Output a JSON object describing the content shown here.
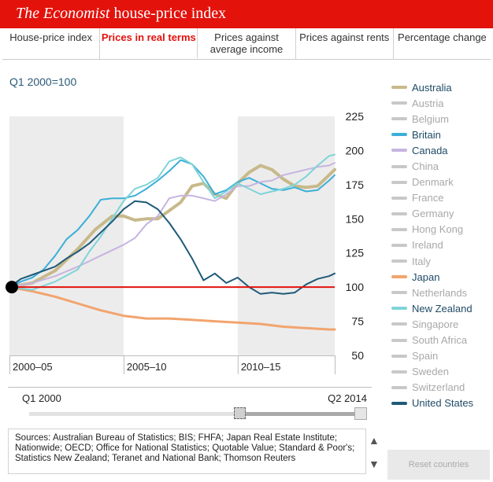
{
  "header": {
    "title_italic": "The Economist",
    "title_rest": " house-price index",
    "bar_color": "#e3120b"
  },
  "tabs": [
    {
      "label": "House-price index",
      "active": false
    },
    {
      "label": "Prices in real terms",
      "active": true
    },
    {
      "label": "Prices against average income",
      "active": false
    },
    {
      "label": "Prices against rents",
      "active": false
    },
    {
      "label": "Percentage change",
      "active": false
    }
  ],
  "base_label": "Q1 2000=100",
  "chart_data": {
    "type": "line",
    "x_range": [
      2000.0,
      2014.25
    ],
    "ylim": [
      50,
      225
    ],
    "y_ticks": [
      50,
      75,
      100,
      125,
      150,
      175,
      200,
      225
    ],
    "x_period_labels": [
      "2000–05",
      "2005–10",
      "2010–15"
    ],
    "baseline": 100,
    "baseline_color": "#e3120b",
    "start_marker": {
      "x": 2000.0,
      "y": 100
    },
    "series": [
      {
        "name": "Australia",
        "color": "#c8b98a",
        "width": 4,
        "x": [
          2000,
          2001,
          2002,
          2003,
          2003.75,
          2004.5,
          2005,
          2005.5,
          2006,
          2006.5,
          2007,
          2007.5,
          2008,
          2008.5,
          2009,
          2009.5,
          2010,
          2010.5,
          2011,
          2011.5,
          2012,
          2012.5,
          2013,
          2013.5,
          2014,
          2014.25
        ],
        "y": [
          100,
          103,
          112,
          128,
          142,
          152,
          152,
          149,
          150,
          150,
          156,
          162,
          174,
          176,
          168,
          165,
          176,
          184,
          189,
          186,
          179,
          174,
          173,
          174,
          182,
          186
        ]
      },
      {
        "name": "Britain",
        "color": "#3cafd8",
        "width": 2,
        "x": [
          2000,
          2000.5,
          2001,
          2001.5,
          2002,
          2002.5,
          2003,
          2003.5,
          2004,
          2004.5,
          2005,
          2005.5,
          2006,
          2006.5,
          2007,
          2007.5,
          2008,
          2008.5,
          2009,
          2009.5,
          2010,
          2010.5,
          2011,
          2011.5,
          2012,
          2012.5,
          2013,
          2013.5,
          2014,
          2014.25
        ],
        "y": [
          100,
          104,
          107,
          113,
          123,
          135,
          142,
          152,
          164,
          165,
          165,
          167,
          172,
          178,
          185,
          193,
          190,
          181,
          168,
          171,
          177,
          180,
          176,
          172,
          171,
          173,
          170,
          171,
          178,
          182
        ]
      },
      {
        "name": "Canada",
        "color": "#c6b4e0",
        "width": 2,
        "x": [
          2000,
          2001,
          2002,
          2003,
          2004,
          2005,
          2005.5,
          2006,
          2006.5,
          2007,
          2007.5,
          2008,
          2008.5,
          2009,
          2009.5,
          2010,
          2010.5,
          2011,
          2011.5,
          2012,
          2012.5,
          2013,
          2013.5,
          2014,
          2014.25
        ],
        "y": [
          100,
          103,
          108,
          115,
          123,
          131,
          136,
          146,
          152,
          165,
          167,
          167,
          165,
          163,
          168,
          174,
          174,
          177,
          178,
          182,
          184,
          186,
          188,
          189,
          191
        ]
      },
      {
        "name": "Japan",
        "color": "#f2a46e",
        "width": 3,
        "x": [
          2000,
          2001,
          2002,
          2003,
          2004,
          2005,
          2006,
          2007,
          2008,
          2009,
          2010,
          2011,
          2012,
          2013,
          2014,
          2014.25
        ],
        "y": [
          100,
          97,
          93,
          88,
          83,
          79,
          77,
          77,
          76,
          75,
          74,
          73,
          71,
          70,
          69,
          69
        ]
      },
      {
        "name": "New Zealand",
        "color": "#7fd4d8",
        "width": 2,
        "x": [
          2000,
          2001,
          2002,
          2003,
          2003.5,
          2004,
          2004.5,
          2005,
          2005.5,
          2006,
          2006.5,
          2007,
          2007.5,
          2008,
          2008.5,
          2009,
          2009.5,
          2010,
          2010.5,
          2011,
          2011.5,
          2012,
          2012.5,
          2013,
          2013.5,
          2014,
          2014.25
        ],
        "y": [
          100,
          98,
          104,
          113,
          126,
          137,
          150,
          163,
          172,
          175,
          180,
          192,
          195,
          190,
          177,
          165,
          170,
          176,
          172,
          168,
          170,
          172,
          175,
          181,
          189,
          196,
          197
        ]
      },
      {
        "name": "United States",
        "color": "#1f5a78",
        "width": 2,
        "x": [
          2000,
          2000.5,
          2001,
          2001.5,
          2002,
          2002.5,
          2003,
          2003.5,
          2004,
          2004.5,
          2005,
          2005.5,
          2006,
          2006.5,
          2007,
          2007.5,
          2008,
          2008.5,
          2009,
          2009.5,
          2010,
          2010.5,
          2011,
          2011.5,
          2012,
          2012.5,
          2013,
          2013.5,
          2014,
          2014.25
        ],
        "y": [
          100,
          106,
          109,
          112,
          115,
          121,
          126,
          132,
          140,
          148,
          157,
          163,
          162,
          157,
          147,
          135,
          121,
          105,
          110,
          103,
          107,
          100,
          95,
          96,
          95,
          96,
          102,
          106,
          108,
          110
        ]
      }
    ]
  },
  "legend": [
    {
      "label": "Australia",
      "color": "#c8b98a",
      "active": true
    },
    {
      "label": "Austria",
      "color": "#c8c8c8",
      "active": false
    },
    {
      "label": "Belgium",
      "color": "#c8c8c8",
      "active": false
    },
    {
      "label": "Britain",
      "color": "#3cafd8",
      "active": true
    },
    {
      "label": "Canada",
      "color": "#c6b4e0",
      "active": true
    },
    {
      "label": "China",
      "color": "#c8c8c8",
      "active": false
    },
    {
      "label": "Denmark",
      "color": "#c8c8c8",
      "active": false
    },
    {
      "label": "France",
      "color": "#c8c8c8",
      "active": false
    },
    {
      "label": "Germany",
      "color": "#c8c8c8",
      "active": false
    },
    {
      "label": "Hong Kong",
      "color": "#c8c8c8",
      "active": false
    },
    {
      "label": "Ireland",
      "color": "#c8c8c8",
      "active": false
    },
    {
      "label": "Italy",
      "color": "#c8c8c8",
      "active": false
    },
    {
      "label": "Japan",
      "color": "#f2a46e",
      "active": true
    },
    {
      "label": "Netherlands",
      "color": "#c8c8c8",
      "active": false
    },
    {
      "label": "New Zealand",
      "color": "#7fd4d8",
      "active": true
    },
    {
      "label": "Singapore",
      "color": "#c8c8c8",
      "active": false
    },
    {
      "label": "South Africa",
      "color": "#c8c8c8",
      "active": false
    },
    {
      "label": "Spain",
      "color": "#c8c8c8",
      "active": false
    },
    {
      "label": "Sweden",
      "color": "#c8c8c8",
      "active": false
    },
    {
      "label": "Switzerland",
      "color": "#c8c8c8",
      "active": false
    },
    {
      "label": "United States",
      "color": "#1f5a78",
      "active": true
    }
  ],
  "slider": {
    "start_label": "Q1 2000",
    "end_label": "Q2 2014"
  },
  "sources": "Sources: Australian Bureau of Statistics; BIS; FHFA; Japan Real Estate Institute; Nationwide; OECD; Office for National Statistics; Quotable Value; Standard & Poor's; Statistics New Zealand; Teranet and National Bank; Thomson Reuters",
  "reset_label": "Reset countries",
  "icons": {
    "up": "▲",
    "down": "▼"
  }
}
